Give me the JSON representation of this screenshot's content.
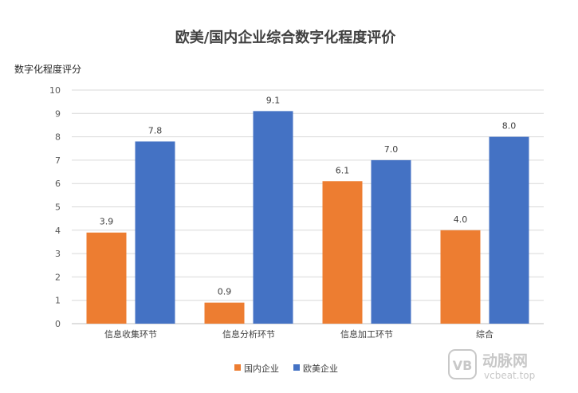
{
  "chart_data": {
    "type": "bar",
    "title": "欧美/国内企业综合数字化程度评价",
    "ylabel": "数字化程度评分",
    "xlabel": "",
    "categories": [
      "信息收集环节",
      "信息分析环节",
      "信息加工环节",
      "综合"
    ],
    "series": [
      {
        "name": "国内企业",
        "values": [
          3.9,
          0.9,
          6.1,
          4.0
        ],
        "labels": [
          "3.9",
          "0.9",
          "6.1",
          "4.0"
        ],
        "color": "#ed7d31"
      },
      {
        "name": "欧美企业",
        "values": [
          7.8,
          9.1,
          7.0,
          8.0
        ],
        "labels": [
          "7.8",
          "9.1",
          "7.0",
          "8.0"
        ],
        "color": "#4472c4"
      }
    ],
    "ylim": [
      0,
      10
    ],
    "yticks": [
      "0",
      "1",
      "2",
      "3",
      "4",
      "5",
      "6",
      "7",
      "8",
      "9",
      "10"
    ],
    "grid": true,
    "legend_position": "bottom"
  },
  "watermark": {
    "brand": "动脉网",
    "site": "vcbeat.top",
    "logo_text": "VB"
  }
}
